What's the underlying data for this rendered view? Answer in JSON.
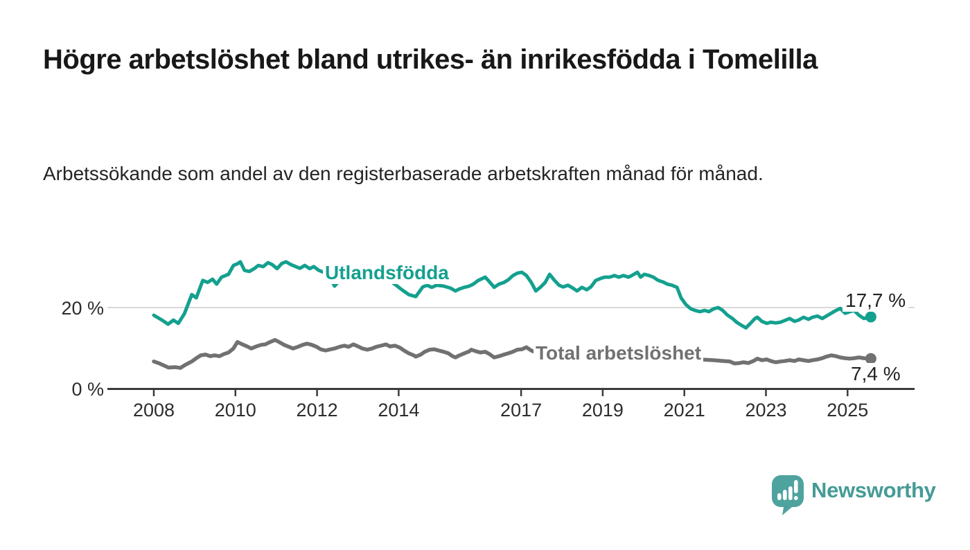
{
  "chart_data": {
    "type": "line",
    "title": "Högre arbetslöshet bland utrikes- än inrikesfödda i Tomelilla",
    "subtitle": "Arbetssökande som andel av den registerbaserade arbetskraften månad för månad.",
    "unit": "%",
    "grid": "horizontal gridline at 20 % only",
    "legend_position": "inline labels on lines",
    "x_axis": {
      "range_years": [
        2006.9,
        2026.6
      ],
      "ticks": [
        {
          "year": 2008,
          "label": "2008"
        },
        {
          "year": 2010,
          "label": "2010"
        },
        {
          "year": 2012,
          "label": "2012"
        },
        {
          "year": 2014,
          "label": "2014"
        },
        {
          "year": 2017,
          "label": "2017"
        },
        {
          "year": 2019,
          "label": "2019"
        },
        {
          "year": 2021,
          "label": "2021"
        },
        {
          "year": 2023,
          "label": "2023"
        },
        {
          "year": 2025,
          "label": "2025"
        }
      ]
    },
    "y_axis": {
      "range": [
        0,
        33
      ],
      "ticks": [
        {
          "value": 0,
          "label": "0 %"
        },
        {
          "value": 20,
          "label": "20 %"
        }
      ]
    },
    "series": [
      {
        "name": "Utlandsfödda",
        "color": "#14a08f",
        "end_label": "17,7 %",
        "end_value": 17.7,
        "points": [
          [
            2008.0,
            18.1
          ],
          [
            2008.2,
            16.9
          ],
          [
            2008.35,
            15.9
          ],
          [
            2008.48,
            16.9
          ],
          [
            2008.6,
            16.1
          ],
          [
            2008.75,
            18.5
          ],
          [
            2008.93,
            23.2
          ],
          [
            2009.04,
            22.4
          ],
          [
            2009.2,
            26.7
          ],
          [
            2009.32,
            26.2
          ],
          [
            2009.44,
            27.0
          ],
          [
            2009.54,
            25.8
          ],
          [
            2009.66,
            27.5
          ],
          [
            2009.83,
            28.2
          ],
          [
            2009.95,
            30.4
          ],
          [
            2010.05,
            30.8
          ],
          [
            2010.12,
            31.3
          ],
          [
            2010.22,
            29.2
          ],
          [
            2010.34,
            28.9
          ],
          [
            2010.46,
            29.6
          ],
          [
            2010.56,
            30.4
          ],
          [
            2010.68,
            30.1
          ],
          [
            2010.8,
            31.1
          ],
          [
            2010.9,
            30.6
          ],
          [
            2011.02,
            29.6
          ],
          [
            2011.14,
            30.9
          ],
          [
            2011.24,
            31.3
          ],
          [
            2011.36,
            30.6
          ],
          [
            2011.48,
            30.1
          ],
          [
            2011.58,
            29.7
          ],
          [
            2011.7,
            30.4
          ],
          [
            2011.82,
            29.6
          ],
          [
            2011.92,
            30.1
          ],
          [
            2012.04,
            29.2
          ],
          [
            2012.16,
            28.7
          ],
          [
            2012.26,
            27.5
          ],
          [
            2012.38,
            26.2
          ],
          [
            2012.43,
            25.3
          ],
          [
            2012.55,
            26.7
          ],
          [
            2012.67,
            27.5
          ],
          [
            2012.72,
            27.9
          ],
          [
            2012.84,
            27.0
          ],
          [
            2012.94,
            27.5
          ],
          [
            2013.06,
            28.2
          ],
          [
            2013.18,
            27.9
          ],
          [
            2013.28,
            28.4
          ],
          [
            2013.4,
            27.9
          ],
          [
            2013.52,
            28.2
          ],
          [
            2013.62,
            27.5
          ],
          [
            2013.74,
            27.0
          ],
          [
            2013.9,
            25.8
          ],
          [
            2014.08,
            24.4
          ],
          [
            2014.25,
            23.2
          ],
          [
            2014.42,
            22.7
          ],
          [
            2014.59,
            25.1
          ],
          [
            2014.7,
            25.5
          ],
          [
            2014.81,
            25.0
          ],
          [
            2014.93,
            25.5
          ],
          [
            2015.1,
            25.3
          ],
          [
            2015.27,
            24.8
          ],
          [
            2015.39,
            24.1
          ],
          [
            2015.49,
            24.6
          ],
          [
            2015.61,
            25.0
          ],
          [
            2015.73,
            25.3
          ],
          [
            2015.83,
            25.8
          ],
          [
            2015.95,
            26.7
          ],
          [
            2016.12,
            27.5
          ],
          [
            2016.23,
            26.3
          ],
          [
            2016.34,
            25.0
          ],
          [
            2016.46,
            25.8
          ],
          [
            2016.58,
            26.2
          ],
          [
            2016.68,
            26.8
          ],
          [
            2016.8,
            27.9
          ],
          [
            2016.91,
            28.5
          ],
          [
            2017.02,
            28.7
          ],
          [
            2017.13,
            27.9
          ],
          [
            2017.25,
            26.2
          ],
          [
            2017.36,
            24.1
          ],
          [
            2017.47,
            25.0
          ],
          [
            2017.59,
            26.2
          ],
          [
            2017.7,
            28.2
          ],
          [
            2017.81,
            26.8
          ],
          [
            2017.93,
            25.5
          ],
          [
            2018.03,
            25.1
          ],
          [
            2018.15,
            25.5
          ],
          [
            2018.27,
            24.8
          ],
          [
            2018.37,
            24.1
          ],
          [
            2018.49,
            25.0
          ],
          [
            2018.61,
            24.4
          ],
          [
            2018.71,
            25.1
          ],
          [
            2018.83,
            26.7
          ],
          [
            2018.95,
            27.2
          ],
          [
            2019.05,
            27.5
          ],
          [
            2019.17,
            27.5
          ],
          [
            2019.29,
            27.9
          ],
          [
            2019.39,
            27.5
          ],
          [
            2019.51,
            27.9
          ],
          [
            2019.63,
            27.5
          ],
          [
            2019.73,
            28.0
          ],
          [
            2019.85,
            28.7
          ],
          [
            2019.93,
            27.5
          ],
          [
            2020.02,
            28.2
          ],
          [
            2020.14,
            27.9
          ],
          [
            2020.24,
            27.5
          ],
          [
            2020.36,
            26.7
          ],
          [
            2020.48,
            26.3
          ],
          [
            2020.58,
            25.8
          ],
          [
            2020.7,
            25.5
          ],
          [
            2020.82,
            25.0
          ],
          [
            2020.92,
            22.4
          ],
          [
            2021.04,
            20.7
          ],
          [
            2021.16,
            19.7
          ],
          [
            2021.26,
            19.3
          ],
          [
            2021.38,
            19.0
          ],
          [
            2021.5,
            19.3
          ],
          [
            2021.6,
            19.0
          ],
          [
            2021.72,
            19.7
          ],
          [
            2021.83,
            20.0
          ],
          [
            2021.94,
            19.3
          ],
          [
            2022.06,
            18.1
          ],
          [
            2022.18,
            17.3
          ],
          [
            2022.28,
            16.4
          ],
          [
            2022.4,
            15.6
          ],
          [
            2022.51,
            15.0
          ],
          [
            2022.62,
            16.1
          ],
          [
            2022.73,
            17.3
          ],
          [
            2022.79,
            17.6
          ],
          [
            2022.9,
            16.6
          ],
          [
            2023.02,
            16.1
          ],
          [
            2023.12,
            16.4
          ],
          [
            2023.24,
            16.2
          ],
          [
            2023.36,
            16.4
          ],
          [
            2023.46,
            16.8
          ],
          [
            2023.58,
            17.3
          ],
          [
            2023.7,
            16.6
          ],
          [
            2023.8,
            16.9
          ],
          [
            2023.92,
            17.6
          ],
          [
            2024.04,
            17.1
          ],
          [
            2024.14,
            17.6
          ],
          [
            2024.26,
            17.9
          ],
          [
            2024.38,
            17.3
          ],
          [
            2024.48,
            17.9
          ],
          [
            2024.6,
            18.6
          ],
          [
            2024.72,
            19.3
          ],
          [
            2024.82,
            19.8
          ],
          [
            2024.94,
            18.6
          ],
          [
            2025.06,
            19.0
          ],
          [
            2025.16,
            19.3
          ],
          [
            2025.28,
            18.1
          ],
          [
            2025.4,
            17.3
          ],
          [
            2025.57,
            17.7
          ]
        ]
      },
      {
        "name": "Total arbetslöshet",
        "color": "#717171",
        "end_label": "7,4 %",
        "end_value": 7.4,
        "points": [
          [
            2008.0,
            6.7
          ],
          [
            2008.14,
            6.2
          ],
          [
            2008.36,
            5.2
          ],
          [
            2008.53,
            5.3
          ],
          [
            2008.65,
            5.1
          ],
          [
            2008.76,
            5.8
          ],
          [
            2008.93,
            6.7
          ],
          [
            2009.04,
            7.5
          ],
          [
            2009.15,
            8.2
          ],
          [
            2009.27,
            8.4
          ],
          [
            2009.38,
            8.0
          ],
          [
            2009.49,
            8.2
          ],
          [
            2009.61,
            8.0
          ],
          [
            2009.71,
            8.5
          ],
          [
            2009.83,
            8.9
          ],
          [
            2009.95,
            9.9
          ],
          [
            2010.05,
            11.5
          ],
          [
            2010.17,
            10.9
          ],
          [
            2010.29,
            10.4
          ],
          [
            2010.39,
            9.9
          ],
          [
            2010.51,
            10.4
          ],
          [
            2010.63,
            10.8
          ],
          [
            2010.73,
            10.9
          ],
          [
            2010.85,
            11.5
          ],
          [
            2010.97,
            12.0
          ],
          [
            2011.07,
            11.5
          ],
          [
            2011.19,
            10.8
          ],
          [
            2011.31,
            10.3
          ],
          [
            2011.41,
            9.9
          ],
          [
            2011.53,
            10.3
          ],
          [
            2011.65,
            10.8
          ],
          [
            2011.75,
            11.1
          ],
          [
            2011.87,
            10.8
          ],
          [
            2011.99,
            10.3
          ],
          [
            2012.09,
            9.7
          ],
          [
            2012.21,
            9.4
          ],
          [
            2012.33,
            9.7
          ],
          [
            2012.43,
            9.9
          ],
          [
            2012.55,
            10.3
          ],
          [
            2012.67,
            10.6
          ],
          [
            2012.77,
            10.3
          ],
          [
            2012.89,
            10.9
          ],
          [
            2013.01,
            10.4
          ],
          [
            2013.11,
            9.9
          ],
          [
            2013.23,
            9.6
          ],
          [
            2013.35,
            9.9
          ],
          [
            2013.45,
            10.3
          ],
          [
            2013.57,
            10.6
          ],
          [
            2013.69,
            10.9
          ],
          [
            2013.79,
            10.4
          ],
          [
            2013.91,
            10.6
          ],
          [
            2014.03,
            10.1
          ],
          [
            2014.13,
            9.4
          ],
          [
            2014.25,
            8.7
          ],
          [
            2014.37,
            8.2
          ],
          [
            2014.42,
            7.9
          ],
          [
            2014.54,
            8.4
          ],
          [
            2014.64,
            9.1
          ],
          [
            2014.76,
            9.6
          ],
          [
            2014.88,
            9.7
          ],
          [
            2014.98,
            9.4
          ],
          [
            2015.1,
            9.1
          ],
          [
            2015.22,
            8.7
          ],
          [
            2015.32,
            8.0
          ],
          [
            2015.39,
            7.7
          ],
          [
            2015.49,
            8.2
          ],
          [
            2015.61,
            8.7
          ],
          [
            2015.73,
            9.2
          ],
          [
            2015.78,
            9.6
          ],
          [
            2015.9,
            9.2
          ],
          [
            2016.0,
            8.9
          ],
          [
            2016.12,
            9.1
          ],
          [
            2016.23,
            8.5
          ],
          [
            2016.34,
            7.7
          ],
          [
            2016.46,
            8.0
          ],
          [
            2016.58,
            8.4
          ],
          [
            2016.68,
            8.7
          ],
          [
            2016.8,
            9.1
          ],
          [
            2016.91,
            9.6
          ],
          [
            2017.02,
            9.7
          ],
          [
            2017.13,
            10.2
          ],
          [
            2017.25,
            9.4
          ],
          [
            2017.36,
            8.9
          ],
          [
            2017.64,
            8.2
          ],
          [
            2017.98,
            7.7
          ],
          [
            2018.32,
            7.4
          ],
          [
            2018.66,
            7.7
          ],
          [
            2019.0,
            8.0
          ],
          [
            2019.34,
            7.9
          ],
          [
            2019.68,
            8.2
          ],
          [
            2020.02,
            8.7
          ],
          [
            2020.36,
            8.4
          ],
          [
            2020.7,
            7.9
          ],
          [
            2021.04,
            7.5
          ],
          [
            2021.38,
            7.2
          ],
          [
            2021.72,
            7.0
          ],
          [
            2021.97,
            6.8
          ],
          [
            2022.11,
            6.7
          ],
          [
            2022.23,
            6.2
          ],
          [
            2022.35,
            6.3
          ],
          [
            2022.45,
            6.5
          ],
          [
            2022.57,
            6.3
          ],
          [
            2022.69,
            6.8
          ],
          [
            2022.79,
            7.4
          ],
          [
            2022.9,
            7.0
          ],
          [
            2023.02,
            7.2
          ],
          [
            2023.12,
            6.8
          ],
          [
            2023.24,
            6.5
          ],
          [
            2023.36,
            6.7
          ],
          [
            2023.46,
            6.8
          ],
          [
            2023.58,
            7.0
          ],
          [
            2023.7,
            6.8
          ],
          [
            2023.8,
            7.2
          ],
          [
            2023.92,
            7.0
          ],
          [
            2024.04,
            6.8
          ],
          [
            2024.14,
            7.0
          ],
          [
            2024.26,
            7.2
          ],
          [
            2024.38,
            7.5
          ],
          [
            2024.48,
            7.9
          ],
          [
            2024.6,
            8.2
          ],
          [
            2024.72,
            8.0
          ],
          [
            2024.82,
            7.7
          ],
          [
            2024.94,
            7.5
          ],
          [
            2025.06,
            7.4
          ],
          [
            2025.16,
            7.5
          ],
          [
            2025.28,
            7.7
          ],
          [
            2025.4,
            7.5
          ],
          [
            2025.57,
            7.4
          ]
        ]
      }
    ]
  },
  "branding": {
    "logo_text": "Newsworthy",
    "logo_color": "#459b96",
    "logo_mark": "bar-chart-speech-bubble"
  }
}
